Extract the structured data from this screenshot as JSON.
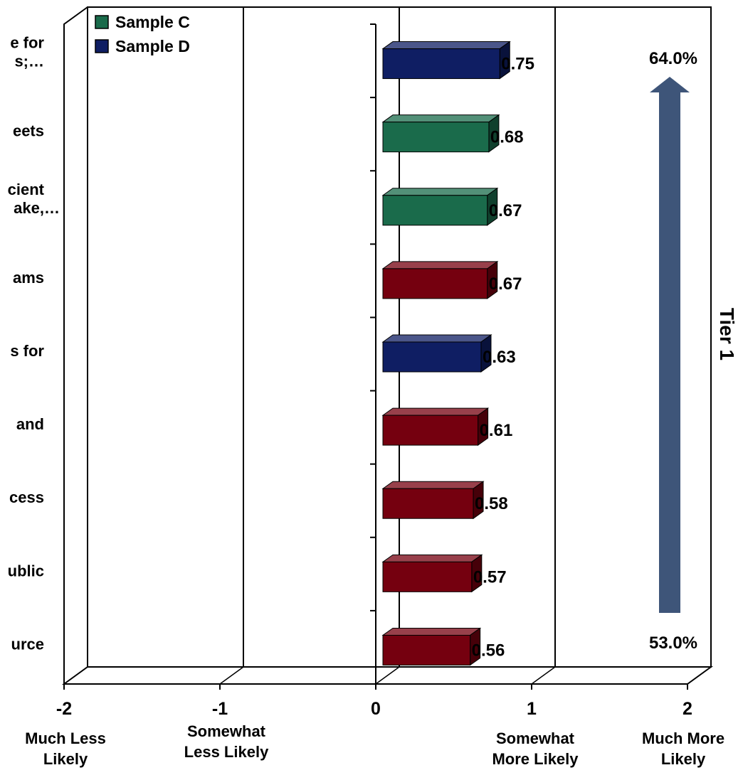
{
  "chart_data": {
    "type": "bar",
    "orientation": "horizontal",
    "categories": [
      "e for\ns;…",
      "eets",
      "cient\nake,…",
      "ams",
      "s for",
      "and",
      "cess",
      "ublic",
      "urce"
    ],
    "values": [
      0.75,
      0.68,
      0.67,
      0.67,
      0.63,
      0.61,
      0.58,
      0.57,
      0.56
    ],
    "value_labels": [
      "0.75",
      "0.68",
      "0.67",
      "0.67",
      "0.63",
      "0.61",
      "0.58",
      "0.57",
      "0.56"
    ],
    "bar_groups": [
      "Sample D",
      "Sample C",
      "Sample C",
      "other",
      "Sample D",
      "other",
      "other",
      "other",
      "other"
    ],
    "colors": {
      "Sample C": "#1a6b4b",
      "Sample D": "#0f1e63",
      "other": "#75000f",
      "arrow": "#3e5579",
      "pct_text": "#3e5579"
    },
    "legend": {
      "position": "top-left",
      "entries": [
        {
          "name": "Sample C",
          "color": "#1a6b4b"
        },
        {
          "name": "Sample D",
          "color": "#0f1e63"
        }
      ]
    },
    "xlim": [
      -2,
      2
    ],
    "x_ticks": [
      {
        "value": -2,
        "label": "-2",
        "sublabel": "Much Less\nLikely"
      },
      {
        "value": -1,
        "label": "-1",
        "sublabel": "Somewhat\nLess Likely"
      },
      {
        "value": 0,
        "label": "0",
        "sublabel": ""
      },
      {
        "value": 1,
        "label": "1",
        "sublabel": "Somewhat\nMore Likely"
      },
      {
        "value": 2,
        "label": "2",
        "sublabel": "Much More\nLikely"
      }
    ],
    "grid": true,
    "annotations": {
      "arrow_top_label": "64.0%",
      "arrow_bottom_label": "53.0%",
      "tier_label": "Tier 1"
    }
  }
}
